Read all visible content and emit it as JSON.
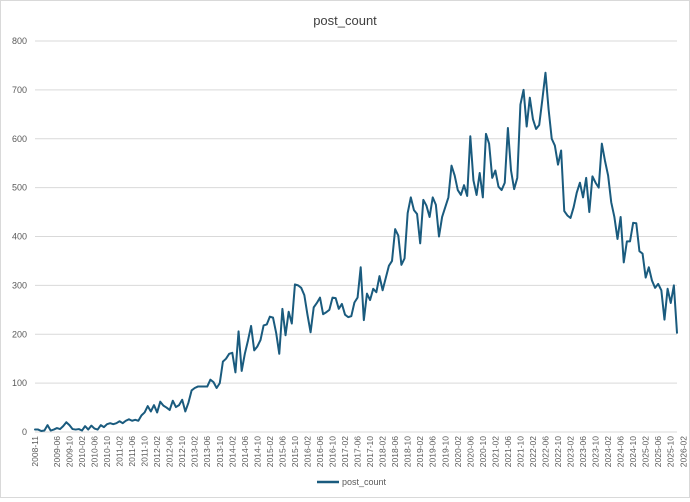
{
  "chart_data": {
    "type": "line",
    "title": "post_count",
    "xlabel": "",
    "ylabel": "",
    "ylim": [
      0,
      800
    ],
    "yticks": [
      0,
      100,
      200,
      300,
      400,
      500,
      600,
      700,
      800
    ],
    "grid": true,
    "legend_position": "bottom",
    "x_start": "2008-11",
    "x_tick_labels": [
      "2008-11",
      "2009-06",
      "2009-10",
      "2010-02",
      "2010-06",
      "2010-10",
      "2011-02",
      "2011-06",
      "2011-10",
      "2012-02",
      "2012-06",
      "2012-10",
      "2013-02",
      "2013-06",
      "2013-10",
      "2014-02",
      "2014-06",
      "2014-10",
      "2015-02",
      "2015-06",
      "2015-10",
      "2016-02",
      "2016-06",
      "2016-10",
      "2017-02",
      "2017-06",
      "2017-10",
      "2018-02",
      "2018-06",
      "2018-10",
      "2019-02",
      "2019-06",
      "2019-10",
      "2020-02",
      "2020-06",
      "2020-10",
      "2021-02",
      "2021-06",
      "2021-10",
      "2022-02",
      "2022-06",
      "2022-10",
      "2023-02",
      "2023-06",
      "2023-10",
      "2024-02",
      "2024-06",
      "2024-10",
      "2025-02",
      "2025-06",
      "2025-10",
      "2026-02"
    ],
    "series": [
      {
        "name": "post_count",
        "color": "#1a5b7e",
        "values": [
          5,
          5,
          2,
          3,
          14,
          3,
          5,
          8,
          6,
          12,
          20,
          14,
          6,
          5,
          6,
          3,
          12,
          5,
          13,
          7,
          5,
          14,
          10,
          16,
          18,
          16,
          18,
          22,
          18,
          23,
          26,
          23,
          25,
          23,
          34,
          40,
          53,
          42,
          55,
          40,
          62,
          54,
          50,
          45,
          64,
          51,
          55,
          66,
          42,
          60,
          85,
          90,
          93,
          93,
          93,
          93,
          107,
          102,
          90,
          100,
          144,
          150,
          160,
          162,
          122,
          206,
          125,
          160,
          187,
          217,
          167,
          175,
          188,
          218,
          220,
          236,
          234,
          203,
          160,
          252,
          198,
          246,
          222,
          302,
          300,
          295,
          280,
          240,
          204,
          255,
          264,
          275,
          241,
          245,
          250,
          275,
          274,
          252,
          262,
          240,
          235,
          237,
          265,
          275,
          337,
          229,
          283,
          270,
          293,
          286,
          319,
          290,
          315,
          340,
          350,
          415,
          402,
          342,
          355,
          448,
          480,
          454,
          446,
          386,
          475,
          463,
          440,
          480,
          465,
          400,
          440,
          460,
          480,
          545,
          525,
          495,
          485,
          505,
          483,
          605,
          515,
          485,
          530,
          480,
          610,
          590,
          520,
          535,
          502,
          495,
          510,
          622,
          535,
          497,
          520,
          670,
          700,
          625,
          684,
          640,
          620,
          628,
          680,
          735,
          660,
          600,
          586,
          547,
          576,
          452,
          443,
          438,
          460,
          490,
          510,
          480,
          520,
          450,
          523,
          510,
          500,
          590,
          555,
          525,
          470,
          440,
          395,
          440,
          347,
          390,
          390,
          428,
          427,
          370,
          365,
          316,
          337,
          310,
          295,
          303,
          290,
          230,
          293,
          264,
          300,
          203
        ]
      }
    ]
  }
}
